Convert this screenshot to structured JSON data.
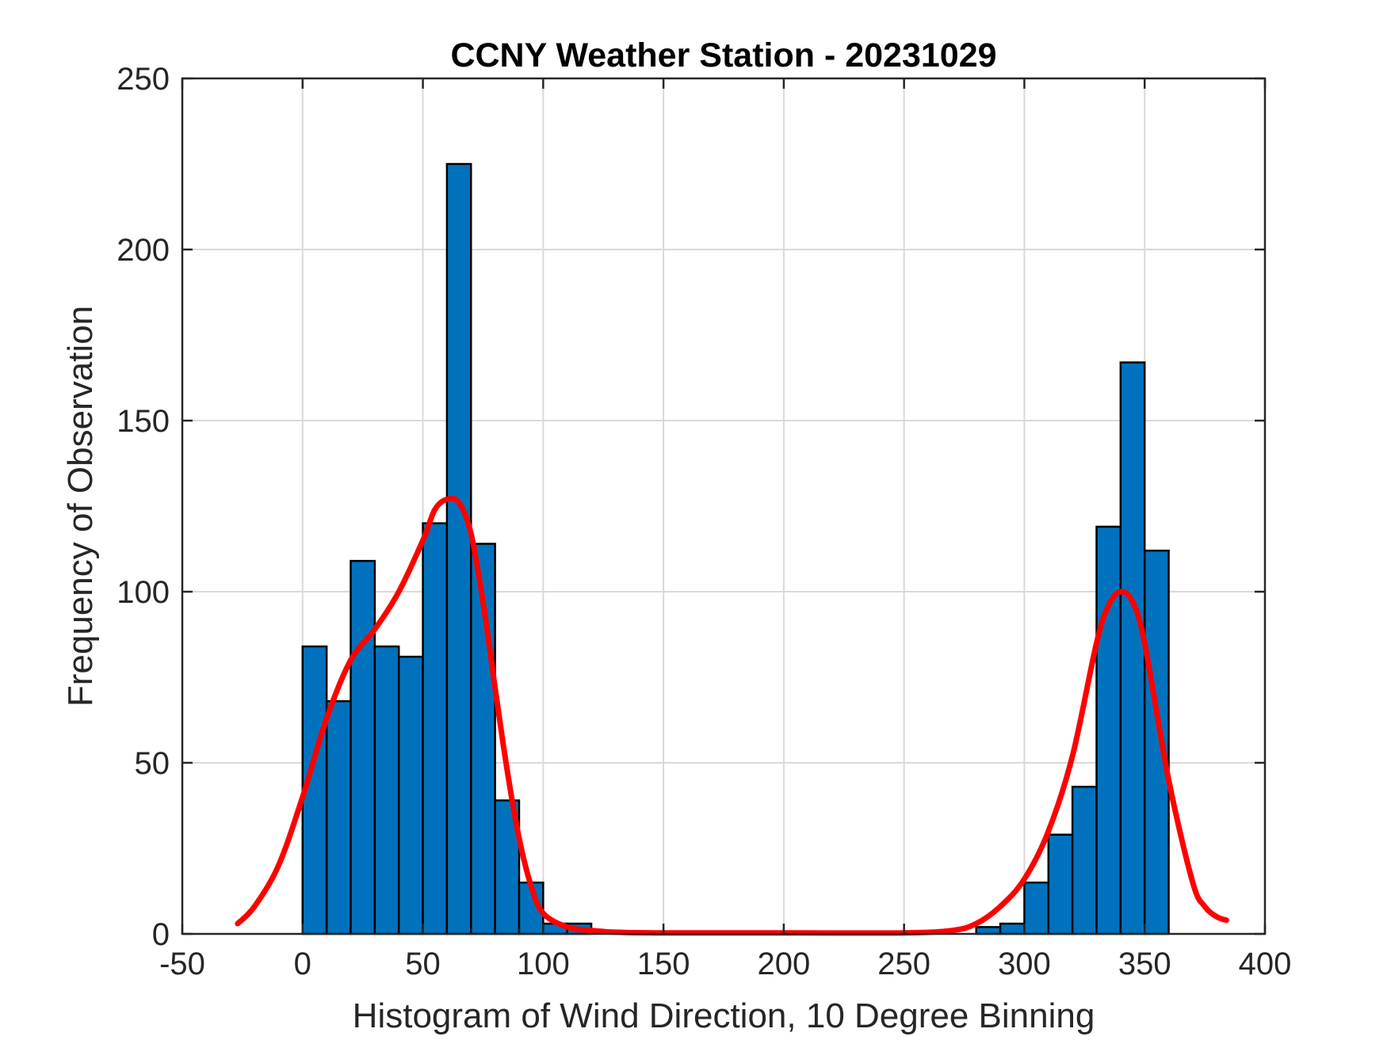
{
  "chart_data": {
    "type": "bar",
    "title": "CCNY Weather Station - 20231029",
    "xlabel": "Histogram of Wind Direction, 10 Degree Binning",
    "ylabel": "Frequency of Observation",
    "xlim": [
      -50,
      400
    ],
    "ylim": [
      0,
      250
    ],
    "xticks": [
      -50,
      0,
      50,
      100,
      150,
      200,
      250,
      300,
      350,
      400
    ],
    "yticks": [
      0,
      50,
      100,
      150,
      200,
      250
    ],
    "grid": true,
    "bin_width": 10,
    "bins": [
      {
        "start": 0,
        "value": 84
      },
      {
        "start": 10,
        "value": 68
      },
      {
        "start": 20,
        "value": 109
      },
      {
        "start": 30,
        "value": 84
      },
      {
        "start": 40,
        "value": 81
      },
      {
        "start": 50,
        "value": 120
      },
      {
        "start": 60,
        "value": 225
      },
      {
        "start": 70,
        "value": 114
      },
      {
        "start": 80,
        "value": 39
      },
      {
        "start": 90,
        "value": 15
      },
      {
        "start": 100,
        "value": 3
      },
      {
        "start": 110,
        "value": 3
      },
      {
        "start": 120,
        "value": 0
      },
      {
        "start": 130,
        "value": 0
      },
      {
        "start": 140,
        "value": 0
      },
      {
        "start": 150,
        "value": 0
      },
      {
        "start": 160,
        "value": 0
      },
      {
        "start": 170,
        "value": 0
      },
      {
        "start": 180,
        "value": 0
      },
      {
        "start": 190,
        "value": 0
      },
      {
        "start": 200,
        "value": 0
      },
      {
        "start": 210,
        "value": 0
      },
      {
        "start": 220,
        "value": 0
      },
      {
        "start": 230,
        "value": 0
      },
      {
        "start": 240,
        "value": 0
      },
      {
        "start": 250,
        "value": 0
      },
      {
        "start": 260,
        "value": 0
      },
      {
        "start": 270,
        "value": 0
      },
      {
        "start": 280,
        "value": 2
      },
      {
        "start": 290,
        "value": 3
      },
      {
        "start": 300,
        "value": 15
      },
      {
        "start": 310,
        "value": 29
      },
      {
        "start": 320,
        "value": 43
      },
      {
        "start": 330,
        "value": 119
      },
      {
        "start": 340,
        "value": 167
      },
      {
        "start": 350,
        "value": 112
      }
    ],
    "fit_curve": {
      "name": "density fit",
      "x": [
        -27,
        -20,
        -10,
        0,
        10,
        20,
        30,
        40,
        50,
        55,
        60,
        65,
        70,
        75,
        80,
        85,
        90,
        95,
        100,
        110,
        120,
        130,
        150,
        200,
        250,
        270,
        280,
        290,
        300,
        310,
        320,
        330,
        335,
        340,
        345,
        350,
        360,
        370,
        375,
        380,
        384
      ],
      "y": [
        3,
        8,
        20,
        40,
        63,
        80,
        89,
        100,
        115,
        124,
        127,
        126,
        117,
        97,
        72,
        48,
        28,
        14,
        6,
        2,
        1,
        0.5,
        0.3,
        0.3,
        0.3,
        1,
        3,
        8,
        16,
        30,
        52,
        85,
        96,
        100,
        97,
        85,
        45,
        15,
        8,
        5,
        4
      ]
    },
    "colors": {
      "bar_fill": "#0072BD",
      "bar_edge": "#000000",
      "fit_line": "#FF0000",
      "grid": "#d9d9d9",
      "axes": "#262626"
    }
  }
}
